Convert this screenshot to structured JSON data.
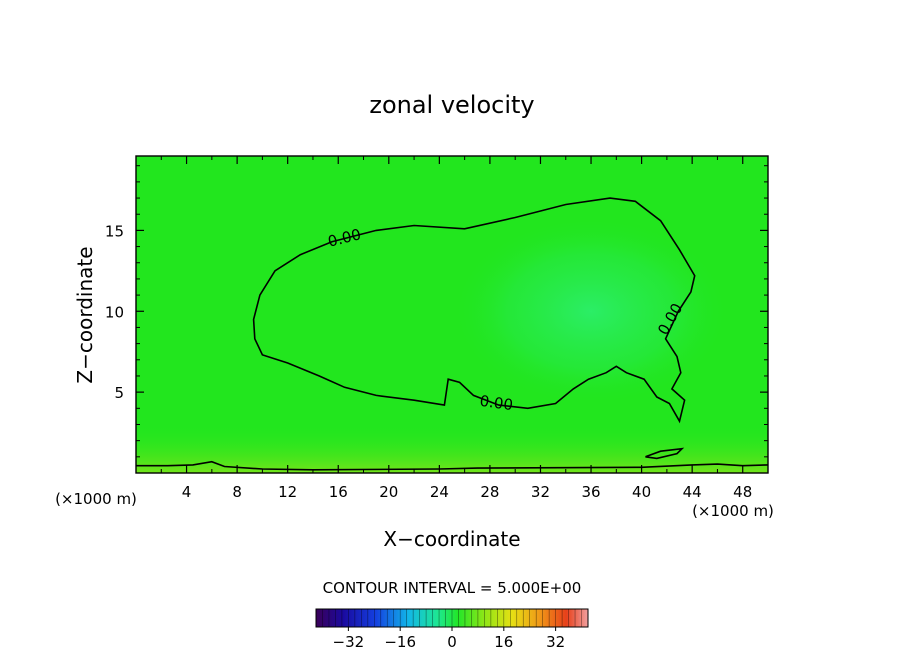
{
  "chart_data": {
    "type": "contour",
    "title": "zonal velocity",
    "xlabel": "X−coordinate",
    "ylabel": "Z−coordinate",
    "x_unit": "(×1000 m)",
    "x_unit_right": "(×1000 m)",
    "xlim": [
      0,
      50
    ],
    "ylim": [
      0,
      19.6
    ],
    "x_ticks": [
      4,
      8,
      12,
      16,
      20,
      24,
      28,
      32,
      36,
      40,
      44,
      48
    ],
    "y_ticks": [
      5,
      10,
      15
    ],
    "contour_labels": [
      {
        "text": "0.00",
        "x": 16.5,
        "y": 14.5,
        "angle": -14
      },
      {
        "text": "0.00",
        "x": 28.5,
        "y": 4.3,
        "angle": 8
      },
      {
        "text": "0.00",
        "x": 42.3,
        "y": 9.5,
        "angle": -60
      }
    ],
    "zero_contour": [
      [
        9.3,
        9.5
      ],
      [
        9.8,
        11.0
      ],
      [
        11.0,
        12.5
      ],
      [
        13.0,
        13.5
      ],
      [
        15.5,
        14.3
      ],
      [
        19.0,
        15.0
      ],
      [
        22.0,
        15.3
      ],
      [
        26.0,
        15.1
      ],
      [
        30.0,
        15.8
      ],
      [
        34.0,
        16.6
      ],
      [
        37.5,
        17.0
      ],
      [
        39.5,
        16.8
      ],
      [
        41.5,
        15.6
      ],
      [
        43.0,
        13.8
      ],
      [
        44.2,
        12.2
      ],
      [
        43.9,
        11.2
      ],
      [
        42.9,
        10.0
      ],
      [
        41.9,
        8.3
      ],
      [
        42.8,
        7.2
      ],
      [
        43.1,
        6.2
      ],
      [
        42.4,
        5.2
      ],
      [
        43.4,
        4.5
      ],
      [
        43.0,
        3.2
      ],
      [
        42.2,
        4.3
      ],
      [
        41.2,
        4.7
      ],
      [
        40.2,
        5.8
      ],
      [
        38.8,
        6.2
      ],
      [
        38.0,
        6.6
      ],
      [
        37.2,
        6.2
      ],
      [
        35.8,
        5.8
      ],
      [
        34.6,
        5.2
      ],
      [
        33.2,
        4.3
      ],
      [
        31.0,
        4.0
      ],
      [
        28.7,
        4.2
      ],
      [
        26.7,
        4.8
      ],
      [
        25.6,
        5.6
      ],
      [
        24.7,
        5.8
      ],
      [
        24.4,
        4.2
      ],
      [
        22.0,
        4.5
      ],
      [
        19.0,
        4.8
      ],
      [
        16.5,
        5.3
      ],
      [
        14.5,
        6.0
      ],
      [
        12.0,
        6.8
      ],
      [
        10.0,
        7.3
      ],
      [
        9.4,
        8.3
      ],
      [
        9.3,
        9.5
      ]
    ],
    "near_ground_contours": [
      [
        [
          0.0,
          0.45
        ],
        [
          2.5,
          0.45
        ],
        [
          4.5,
          0.5
        ],
        [
          6.0,
          0.7
        ],
        [
          7.0,
          0.4
        ],
        [
          10.0,
          0.25
        ],
        [
          14.0,
          0.2
        ],
        [
          24.0,
          0.25
        ],
        [
          27.0,
          0.3
        ],
        [
          40.0,
          0.35
        ],
        [
          44.0,
          0.5
        ],
        [
          46.0,
          0.55
        ],
        [
          48.0,
          0.45
        ],
        [
          50.0,
          0.5
        ]
      ],
      [
        [
          40.3,
          1.0
        ],
        [
          41.5,
          1.35
        ],
        [
          43.2,
          1.5
        ],
        [
          42.8,
          1.2
        ],
        [
          41.2,
          0.9
        ],
        [
          40.3,
          1.0
        ]
      ]
    ],
    "field_peak_region": {
      "x": 36.0,
      "y": 10.0,
      "value": 3
    },
    "colorbar": {
      "title": "CONTOUR INTERVAL = 5.000E+00",
      "min": -42,
      "max": 42,
      "tick_values": [
        -32,
        -16,
        0,
        16,
        32
      ],
      "tick_labels": [
        "−32",
        "−16",
        "0",
        "16",
        "32"
      ]
    },
    "colors": {
      "field_base": "#22e61e",
      "field_core": "#27ea5a",
      "field_ground": "#6fe41a",
      "contour": "#000000"
    }
  }
}
